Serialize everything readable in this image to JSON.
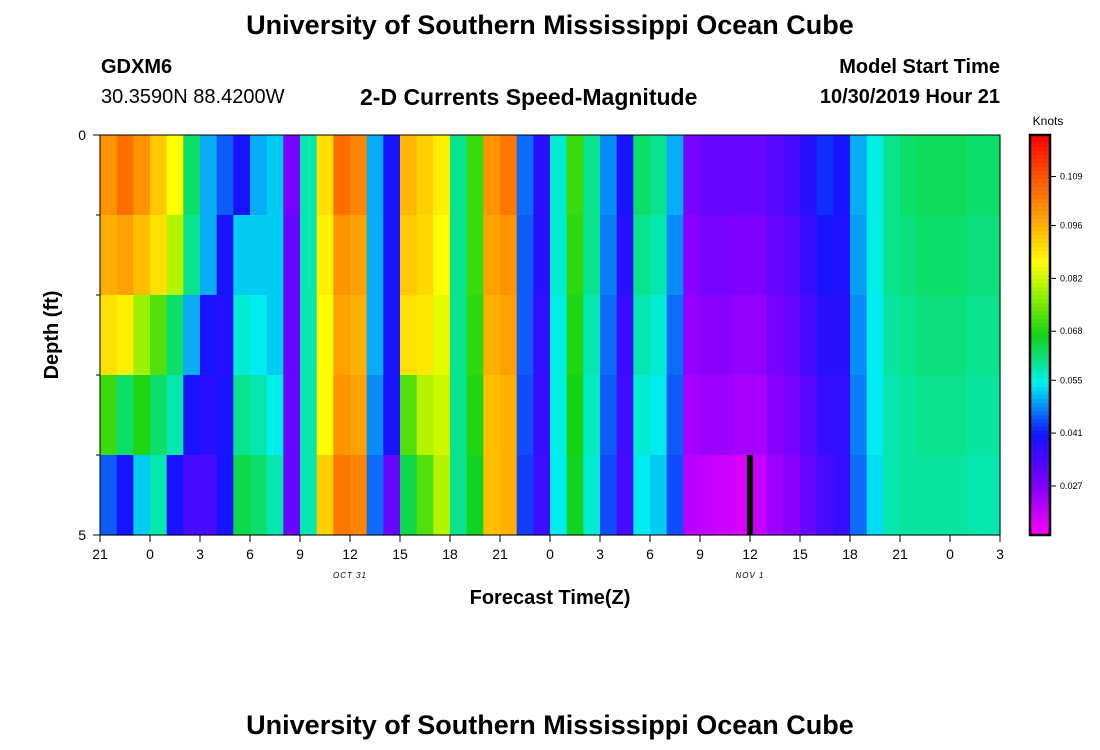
{
  "header": {
    "title": "University of Southern Mississippi Ocean Cube",
    "station": "GDXM6",
    "coords": "30.3590N 88.4200W",
    "subtitle": "2-D Currents Speed-Magnitude",
    "model_label": "Model Start Time",
    "model_time": "10/30/2019 Hour 21"
  },
  "footer": {
    "title": "University of Southern Mississippi Ocean Cube"
  },
  "chart_data": {
    "type": "heatmap",
    "title": "2-D Currents Speed-Magnitude",
    "xlabel": "Forecast Time(Z)",
    "ylabel": "Depth (ft)",
    "x_range_hours": [
      0,
      54
    ],
    "x_tick_labels": [
      "21",
      "0",
      "3",
      "6",
      "9",
      "12",
      "15",
      "18",
      "21",
      "0",
      "3",
      "6",
      "9",
      "12",
      "15",
      "18",
      "21",
      "0",
      "3"
    ],
    "date_labels": [
      {
        "label": "OCT 31",
        "hour": 15
      },
      {
        "label": "NOV 1",
        "hour": 39
      }
    ],
    "y_range": [
      0,
      5
    ],
    "y_tick_labels": [
      "0",
      "5"
    ],
    "y_tick_values": [
      0,
      5
    ],
    "y_minor_ticks": [
      1,
      2,
      3,
      4
    ],
    "colorbar": {
      "unit": "Knots",
      "min": 0.014,
      "max": 0.12,
      "ticks": [
        "0.027",
        "0.041",
        "0.055",
        "0.068",
        "0.082",
        "0.096",
        "0.109"
      ],
      "tick_values": [
        0.027,
        0.041,
        0.055,
        0.068,
        0.082,
        0.096,
        0.109
      ]
    },
    "current_time_marker_hour": 39,
    "depth_layers": [
      0.5,
      1.5,
      2.5,
      3.5,
      4.5
    ],
    "column_hours": [
      0,
      1,
      2,
      3,
      4,
      5,
      6,
      7,
      8,
      9,
      10,
      11,
      12,
      13,
      14,
      15,
      16,
      17,
      18,
      19,
      20,
      21,
      22,
      23,
      24,
      25,
      26,
      27,
      28,
      29,
      30,
      31,
      32,
      33,
      34,
      35,
      36,
      37,
      38,
      39,
      40,
      41,
      42,
      43,
      44,
      45,
      46,
      47,
      48,
      49,
      50,
      51,
      52,
      53
    ],
    "values": [
      [
        0.1,
        0.105,
        0.1,
        0.093,
        0.086,
        0.062,
        0.05,
        0.045,
        0.04,
        0.05,
        0.052,
        0.028,
        0.058,
        0.09,
        0.105,
        0.102,
        0.05,
        0.04,
        0.095,
        0.092,
        0.088,
        0.06,
        0.07,
        0.1,
        0.104,
        0.046,
        0.038,
        0.056,
        0.07,
        0.06,
        0.048,
        0.04,
        0.062,
        0.06,
        0.05,
        0.028,
        0.03,
        0.03,
        0.03,
        0.03,
        0.032,
        0.034,
        0.038,
        0.042,
        0.04,
        0.05,
        0.055,
        0.06,
        0.062,
        0.063,
        0.063,
        0.063,
        0.062,
        0.062
      ],
      [
        0.096,
        0.098,
        0.094,
        0.09,
        0.08,
        0.06,
        0.05,
        0.04,
        0.052,
        0.052,
        0.052,
        0.03,
        0.058,
        0.088,
        0.1,
        0.098,
        0.05,
        0.04,
        0.093,
        0.091,
        0.086,
        0.06,
        0.07,
        0.098,
        0.1,
        0.045,
        0.038,
        0.056,
        0.069,
        0.06,
        0.047,
        0.038,
        0.06,
        0.058,
        0.048,
        0.026,
        0.028,
        0.028,
        0.027,
        0.027,
        0.03,
        0.032,
        0.036,
        0.04,
        0.039,
        0.049,
        0.055,
        0.06,
        0.061,
        0.062,
        0.062,
        0.062,
        0.061,
        0.061
      ],
      [
        0.09,
        0.088,
        0.078,
        0.072,
        0.062,
        0.05,
        0.04,
        0.038,
        0.056,
        0.054,
        0.052,
        0.03,
        0.058,
        0.086,
        0.098,
        0.096,
        0.05,
        0.04,
        0.09,
        0.089,
        0.084,
        0.06,
        0.069,
        0.096,
        0.098,
        0.045,
        0.037,
        0.055,
        0.068,
        0.058,
        0.046,
        0.036,
        0.058,
        0.056,
        0.046,
        0.025,
        0.026,
        0.026,
        0.025,
        0.025,
        0.028,
        0.03,
        0.034,
        0.038,
        0.038,
        0.048,
        0.054,
        0.059,
        0.06,
        0.061,
        0.061,
        0.061,
        0.06,
        0.06
      ],
      [
        0.07,
        0.062,
        0.068,
        0.062,
        0.058,
        0.04,
        0.038,
        0.04,
        0.06,
        0.058,
        0.055,
        0.03,
        0.058,
        0.086,
        0.1,
        0.098,
        0.048,
        0.04,
        0.072,
        0.08,
        0.082,
        0.06,
        0.068,
        0.094,
        0.096,
        0.044,
        0.036,
        0.055,
        0.067,
        0.057,
        0.045,
        0.035,
        0.056,
        0.054,
        0.045,
        0.023,
        0.024,
        0.024,
        0.023,
        0.023,
        0.026,
        0.028,
        0.032,
        0.036,
        0.037,
        0.047,
        0.054,
        0.058,
        0.059,
        0.06,
        0.06,
        0.06,
        0.059,
        0.059
      ],
      [
        0.045,
        0.04,
        0.052,
        0.058,
        0.04,
        0.034,
        0.034,
        0.04,
        0.064,
        0.062,
        0.058,
        0.03,
        0.058,
        0.092,
        0.104,
        0.102,
        0.046,
        0.03,
        0.064,
        0.072,
        0.08,
        0.06,
        0.066,
        0.094,
        0.096,
        0.043,
        0.035,
        0.054,
        0.066,
        0.056,
        0.044,
        0.034,
        0.054,
        0.052,
        0.044,
        0.021,
        0.02,
        0.019,
        0.018,
        0.02,
        0.024,
        0.026,
        0.03,
        0.034,
        0.036,
        0.046,
        0.053,
        0.058,
        0.059,
        0.059,
        0.059,
        0.059,
        0.058,
        0.058
      ]
    ]
  }
}
